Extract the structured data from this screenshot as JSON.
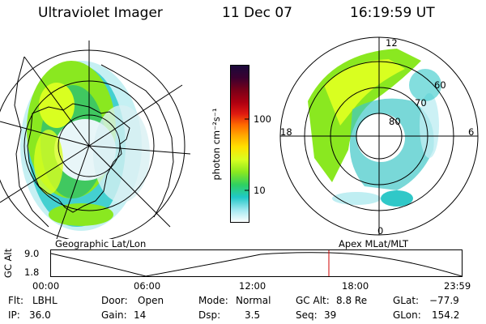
{
  "header": {
    "instrument": "Ultraviolet Imager",
    "date": "11 Dec 07",
    "time": "16:19:59 UT"
  },
  "geo_map": {
    "label": "Geographic Lat/Lon"
  },
  "colorbar": {
    "unit_label": "photon cm⁻²s⁻¹",
    "tick_labels": [
      "100",
      "10"
    ],
    "colors": [
      "#1a0a3c",
      "#3a0030",
      "#7a0018",
      "#b00010",
      "#e01a10",
      "#ff6a00",
      "#ffaa00",
      "#ffe000",
      "#d9ff20",
      "#8ae820",
      "#30d060",
      "#20c8c8",
      "#a0e8f0",
      "#ffffff"
    ]
  },
  "mag_map": {
    "label": "Apex MLat/MLT",
    "lat_labels": [
      "60",
      "70",
      "80"
    ],
    "mlt_labels": {
      "top": "12",
      "left": "18",
      "right": "6",
      "bottom": "0"
    }
  },
  "altitude_plot": {
    "axis_label": "GC Alt",
    "y_ticks": [
      "9.0",
      "1.8"
    ],
    "x_ticks": [
      "00:00",
      "06:00",
      "12:00",
      "18:00",
      "23:59"
    ],
    "current_marker_time": "16:19:59"
  },
  "status": {
    "filter": {
      "label": "Flt:",
      "value": "LBHL"
    },
    "ip": {
      "label": "IP:",
      "value": "36.0"
    },
    "door": {
      "label": "Door:",
      "value": "Open"
    },
    "gain": {
      "label": "Gain:",
      "value": "14"
    },
    "mode": {
      "label": "Mode:",
      "value": "Normal"
    },
    "dsp": {
      "label": "Dsp:",
      "value": "3.5"
    },
    "gc_alt": {
      "label": "GC Alt:",
      "value": "8.8 Re"
    },
    "seq": {
      "label": "Seq:",
      "value": "39"
    },
    "glat": {
      "label": "GLat:",
      "value": "−77.9"
    },
    "glon": {
      "label": "GLon:",
      "value": "154.2"
    }
  }
}
